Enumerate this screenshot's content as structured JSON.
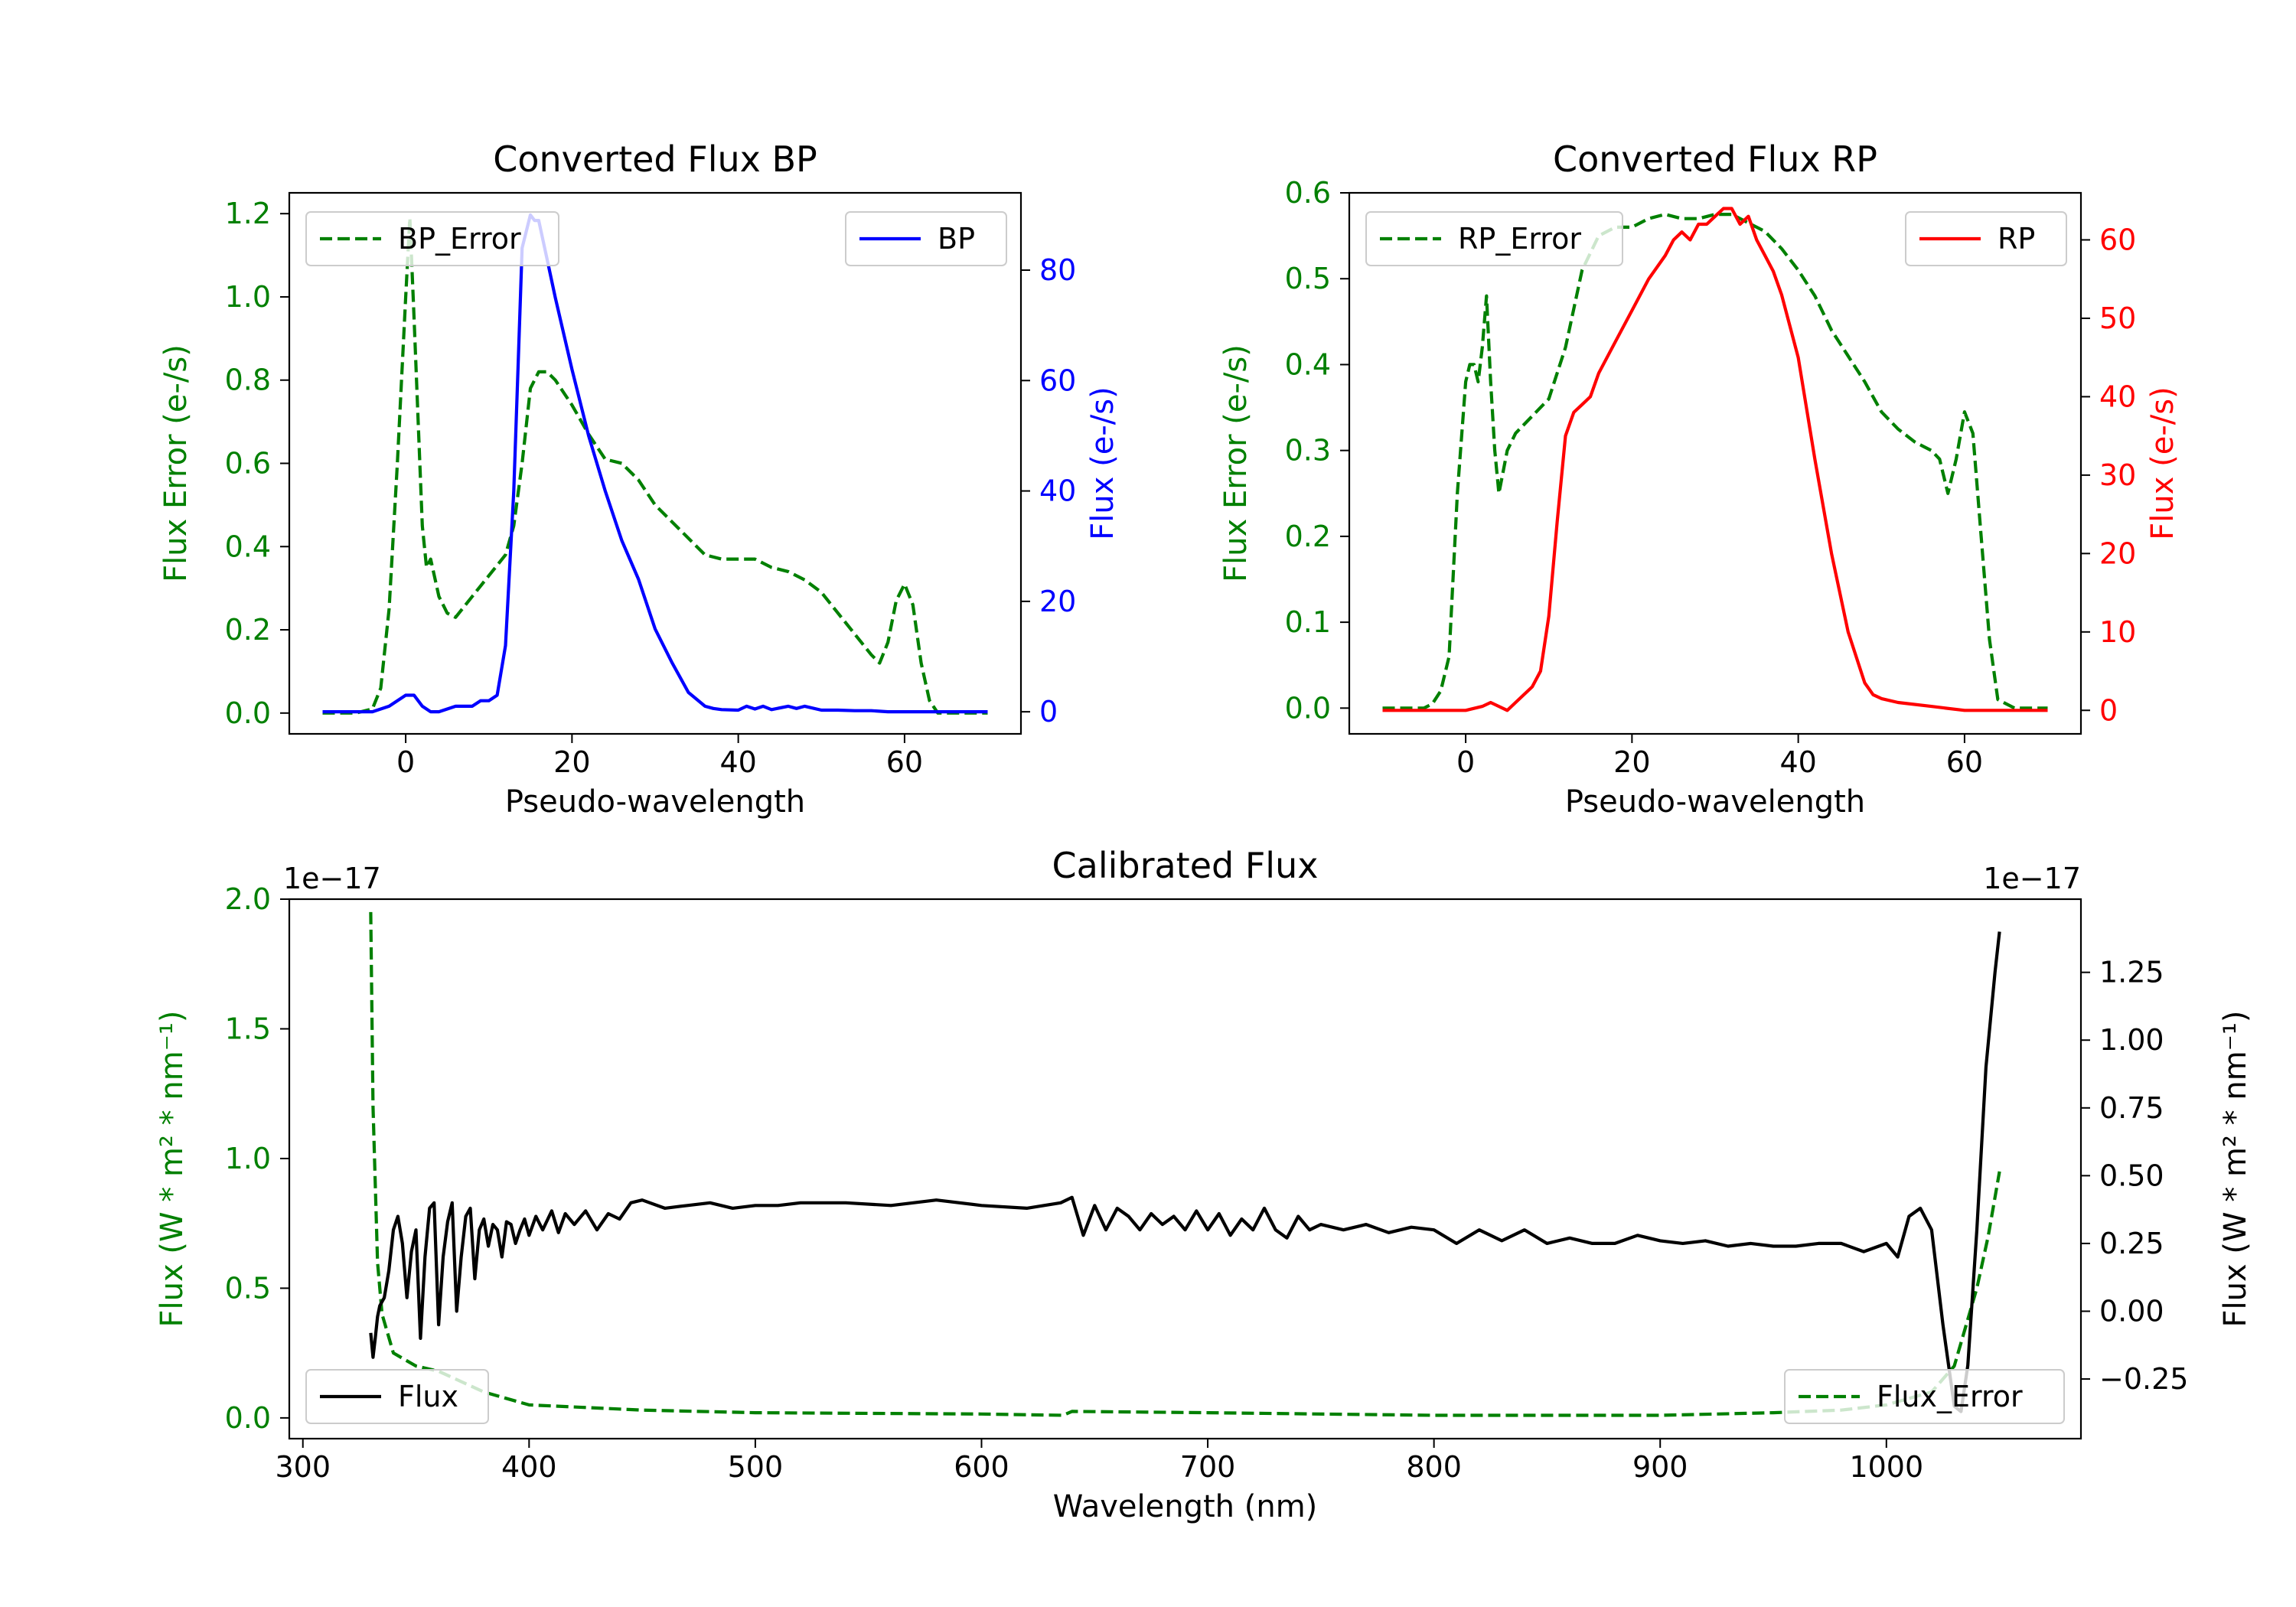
{
  "colors": {
    "green": "#008000",
    "blue": "#0000ff",
    "red": "#ff0000",
    "black": "#000000"
  },
  "chart_data": [
    {
      "type": "line",
      "title": "Converted Flux BP",
      "xlabel": "Pseudo-wavelength",
      "ylabel_left": "Flux Error (e-/s)",
      "ylabel_right": "Flux (e-/s)",
      "xlim": [
        -14,
        74
      ],
      "ylim_left": [
        -0.05,
        1.25
      ],
      "ylim_right": [
        -4,
        94
      ],
      "xticks": [
        0,
        20,
        40,
        60
      ],
      "xtick_labels": [
        "0",
        "20",
        "40",
        "60"
      ],
      "yticks_left": [
        0,
        0.2,
        0.4,
        0.6,
        0.8,
        1.0,
        1.2
      ],
      "ytick_labels_left": [
        "0.0",
        "0.2",
        "0.4",
        "0.6",
        "0.8",
        "1.0",
        "1.2"
      ],
      "yticks_right": [
        0,
        20,
        40,
        60,
        80
      ],
      "ytick_labels_right": [
        "0",
        "20",
        "40",
        "60",
        "80"
      ],
      "legend_left": "BP_Error",
      "legend_right": "BP",
      "series": [
        {
          "name": "BP_Error",
          "axis": "left",
          "style": "dashed",
          "color": "#008000",
          "x": [
            -10,
            -6,
            -4,
            -3,
            -2,
            -1,
            0,
            0.5,
            1,
            2,
            2.5,
            3,
            4,
            5,
            6,
            8,
            10,
            12,
            13,
            14,
            15,
            16,
            17,
            18,
            20,
            22,
            24,
            26,
            28,
            30,
            32,
            34,
            36,
            38,
            40,
            42,
            44,
            46,
            48,
            50,
            52,
            54,
            56,
            57,
            58,
            59,
            60,
            61,
            62,
            63,
            64,
            66,
            68,
            70
          ],
          "y": [
            0.0,
            0.0,
            0.01,
            0.06,
            0.25,
            0.6,
            1.0,
            1.19,
            0.95,
            0.45,
            0.35,
            0.37,
            0.28,
            0.24,
            0.23,
            0.28,
            0.33,
            0.38,
            0.45,
            0.6,
            0.78,
            0.82,
            0.82,
            0.8,
            0.74,
            0.67,
            0.61,
            0.6,
            0.56,
            0.5,
            0.46,
            0.42,
            0.38,
            0.37,
            0.37,
            0.37,
            0.35,
            0.34,
            0.32,
            0.29,
            0.24,
            0.19,
            0.14,
            0.12,
            0.17,
            0.27,
            0.31,
            0.26,
            0.12,
            0.03,
            0.0,
            0.0,
            0.0,
            0.0
          ]
        },
        {
          "name": "BP",
          "axis": "right",
          "style": "solid",
          "color": "#0000ff",
          "x": [
            -10,
            -4,
            -2,
            0,
            1,
            2,
            3,
            4,
            6,
            8,
            9,
            10,
            11,
            12,
            13,
            13.5,
            14,
            15,
            15.5,
            16,
            17,
            18,
            20,
            22,
            24,
            26,
            28,
            30,
            32,
            34,
            36,
            37,
            38,
            40,
            41,
            42,
            43,
            44,
            46,
            47,
            48,
            50,
            52,
            54,
            56,
            58,
            60,
            62,
            66,
            70
          ],
          "y": [
            0,
            0,
            1,
            3,
            3,
            1,
            0,
            0,
            1,
            1,
            2,
            2,
            3,
            12,
            40,
            62,
            84,
            90,
            89,
            89,
            82,
            75,
            62,
            50,
            40,
            31,
            24,
            15,
            9,
            3.5,
            1,
            0.6,
            0.4,
            0.3,
            1,
            0.5,
            1,
            0.4,
            1,
            0.6,
            1,
            0.3,
            0.3,
            0.2,
            0.2,
            0,
            0,
            0,
            0,
            0
          ]
        }
      ]
    },
    {
      "type": "line",
      "title": "Converted Flux RP",
      "xlabel": "Pseudo-wavelength",
      "ylabel_left": "Flux Error (e-/s)",
      "ylabel_right": "Flux (e-/s)",
      "xlim": [
        -14,
        74
      ],
      "ylim_left": [
        -0.03,
        0.6
      ],
      "ylim_right": [
        -3,
        66
      ],
      "xticks": [
        0,
        20,
        40,
        60
      ],
      "xtick_labels": [
        "0",
        "20",
        "40",
        "60"
      ],
      "yticks_left": [
        0,
        0.1,
        0.2,
        0.3,
        0.4,
        0.5,
        0.6
      ],
      "ytick_labels_left": [
        "0.0",
        "0.1",
        "0.2",
        "0.3",
        "0.4",
        "0.5",
        "0.6"
      ],
      "yticks_right": [
        0,
        10,
        20,
        30,
        40,
        50,
        60
      ],
      "ytick_labels_right": [
        "0",
        "10",
        "20",
        "30",
        "40",
        "50",
        "60"
      ],
      "legend_left": "RP_Error",
      "legend_right": "RP",
      "series": [
        {
          "name": "RP_Error",
          "axis": "left",
          "style": "dashed",
          "color": "#008000",
          "x": [
            -10,
            -5,
            -4,
            -3,
            -2,
            -1,
            0,
            0.5,
            1,
            1.5,
            2,
            2.5,
            3,
            3.5,
            4,
            5,
            6,
            7,
            8,
            10,
            12,
            14,
            16,
            18,
            20,
            22,
            24,
            26,
            28,
            30,
            32,
            34,
            36,
            38,
            40,
            42,
            44,
            46,
            48,
            50,
            52,
            54,
            55,
            56,
            57,
            58,
            59,
            60,
            61,
            62,
            63,
            64,
            66,
            70
          ],
          "y": [
            0.0,
            0.0,
            0.005,
            0.02,
            0.06,
            0.25,
            0.38,
            0.4,
            0.4,
            0.38,
            0.42,
            0.48,
            0.38,
            0.3,
            0.25,
            0.3,
            0.32,
            0.33,
            0.34,
            0.36,
            0.42,
            0.51,
            0.55,
            0.56,
            0.56,
            0.57,
            0.575,
            0.57,
            0.57,
            0.575,
            0.575,
            0.565,
            0.555,
            0.535,
            0.51,
            0.48,
            0.44,
            0.41,
            0.38,
            0.345,
            0.325,
            0.31,
            0.305,
            0.3,
            0.29,
            0.25,
            0.29,
            0.345,
            0.32,
            0.2,
            0.08,
            0.01,
            0.0,
            0.0
          ]
        },
        {
          "name": "RP",
          "axis": "right",
          "style": "solid",
          "color": "#ff0000",
          "x": [
            -10,
            -2,
            0,
            2,
            3,
            4,
            5,
            6,
            8,
            9,
            10,
            11,
            12,
            13,
            14,
            15,
            16,
            18,
            20,
            22,
            24,
            25,
            26,
            27,
            28,
            29,
            30,
            31,
            32,
            33,
            34,
            35,
            36,
            37,
            38,
            40,
            42,
            44,
            46,
            48,
            49,
            50,
            52,
            56,
            60,
            64,
            70
          ],
          "y": [
            0,
            0,
            0,
            0.5,
            1,
            0.5,
            0,
            1,
            3,
            5,
            12,
            24,
            35,
            38,
            39,
            40,
            43,
            47,
            51,
            55,
            58,
            60,
            61,
            60,
            62,
            62,
            63,
            64,
            64,
            62,
            63,
            60,
            58,
            56,
            53,
            45,
            32,
            20,
            10,
            3.5,
            2,
            1.5,
            1,
            0.5,
            0,
            0,
            0
          ]
        }
      ]
    },
    {
      "type": "line",
      "title": "Calibrated Flux",
      "xlabel": "Wavelength (nm)",
      "ylabel_left": "Flux (W * m² * nm⁻¹)",
      "ylabel_right": "Flux (W * m² * nm⁻¹)",
      "offset_left": "1e−17",
      "offset_right": "1e−17",
      "xlim": [
        294,
        1086
      ],
      "ylim_left": [
        -0.08,
        2.0
      ],
      "ylim_right": [
        -0.47,
        1.52
      ],
      "xticks": [
        300,
        400,
        500,
        600,
        700,
        800,
        900,
        1000
      ],
      "xtick_labels": [
        "300",
        "400",
        "500",
        "600",
        "700",
        "800",
        "900",
        "1000"
      ],
      "yticks_left": [
        0,
        0.5,
        1.0,
        1.5,
        2.0
      ],
      "ytick_labels_left": [
        "0.0",
        "0.5",
        "1.0",
        "1.5",
        "2.0"
      ],
      "yticks_right": [
        -0.25,
        0,
        0.25,
        0.5,
        0.75,
        1.0,
        1.25
      ],
      "ytick_labels_right": [
        "−0.25",
        "0.00",
        "0.25",
        "0.50",
        "0.75",
        "1.00",
        "1.25"
      ],
      "legend_left": "Flux",
      "legend_right": "Flux_Error",
      "series": [
        {
          "name": "Flux_Error",
          "axis": "left",
          "style": "dashed",
          "color": "#008000",
          "x": [
            330,
            331,
            333,
            335,
            340,
            350,
            360,
            380,
            400,
            450,
            500,
            600,
            636,
            640,
            700,
            800,
            900,
            950,
            980,
            1000,
            1020,
            1030,
            1040,
            1045,
            1050
          ],
          "y": [
            1.95,
            1.2,
            0.6,
            0.4,
            0.25,
            0.2,
            0.18,
            0.1,
            0.05,
            0.03,
            0.02,
            0.015,
            0.01,
            0.025,
            0.02,
            0.01,
            0.01,
            0.02,
            0.03,
            0.05,
            0.1,
            0.2,
            0.5,
            0.7,
            0.95
          ]
        },
        {
          "name": "Flux",
          "axis": "right",
          "style": "solid",
          "color": "#000000",
          "x": [
            330,
            331,
            332,
            333,
            334,
            336,
            338,
            340,
            342,
            344,
            346,
            348,
            350,
            352,
            354,
            356,
            358,
            360,
            362,
            364,
            366,
            368,
            370,
            372,
            374,
            376,
            378,
            380,
            382,
            384,
            386,
            388,
            390,
            392,
            394,
            396,
            398,
            400,
            403,
            406,
            410,
            413,
            416,
            420,
            425,
            430,
            435,
            440,
            445,
            450,
            460,
            470,
            480,
            490,
            500,
            510,
            520,
            540,
            560,
            580,
            600,
            620,
            635,
            640,
            645,
            650,
            655,
            660,
            665,
            670,
            675,
            680,
            685,
            690,
            695,
            700,
            705,
            710,
            715,
            720,
            725,
            730,
            735,
            740,
            745,
            750,
            760,
            770,
            780,
            790,
            800,
            810,
            820,
            830,
            840,
            850,
            860,
            870,
            880,
            890,
            900,
            910,
            920,
            930,
            940,
            950,
            960,
            970,
            980,
            990,
            1000,
            1005,
            1010,
            1015,
            1020,
            1025,
            1030,
            1033,
            1036,
            1040,
            1044,
            1048,
            1050
          ],
          "y": [
            -0.08,
            -0.17,
            -0.1,
            -0.02,
            0.02,
            0.05,
            0.15,
            0.3,
            0.35,
            0.25,
            0.05,
            0.22,
            0.3,
            -0.1,
            0.2,
            0.38,
            0.4,
            -0.05,
            0.2,
            0.33,
            0.4,
            0.0,
            0.2,
            0.35,
            0.38,
            0.12,
            0.3,
            0.34,
            0.24,
            0.32,
            0.3,
            0.2,
            0.33,
            0.32,
            0.25,
            0.3,
            0.34,
            0.28,
            0.35,
            0.3,
            0.37,
            0.29,
            0.36,
            0.32,
            0.37,
            0.3,
            0.36,
            0.34,
            0.4,
            0.41,
            0.38,
            0.39,
            0.4,
            0.38,
            0.39,
            0.39,
            0.4,
            0.4,
            0.39,
            0.41,
            0.39,
            0.38,
            0.4,
            0.42,
            0.28,
            0.39,
            0.3,
            0.38,
            0.35,
            0.3,
            0.36,
            0.32,
            0.35,
            0.3,
            0.37,
            0.3,
            0.36,
            0.28,
            0.34,
            0.3,
            0.38,
            0.3,
            0.27,
            0.35,
            0.3,
            0.32,
            0.3,
            0.32,
            0.29,
            0.31,
            0.3,
            0.25,
            0.3,
            0.26,
            0.3,
            0.25,
            0.27,
            0.25,
            0.25,
            0.28,
            0.26,
            0.25,
            0.26,
            0.24,
            0.25,
            0.24,
            0.24,
            0.25,
            0.25,
            0.22,
            0.25,
            0.2,
            0.35,
            0.38,
            0.3,
            -0.05,
            -0.35,
            -0.37,
            -0.2,
            0.3,
            0.9,
            1.25,
            1.4
          ]
        }
      ]
    }
  ]
}
